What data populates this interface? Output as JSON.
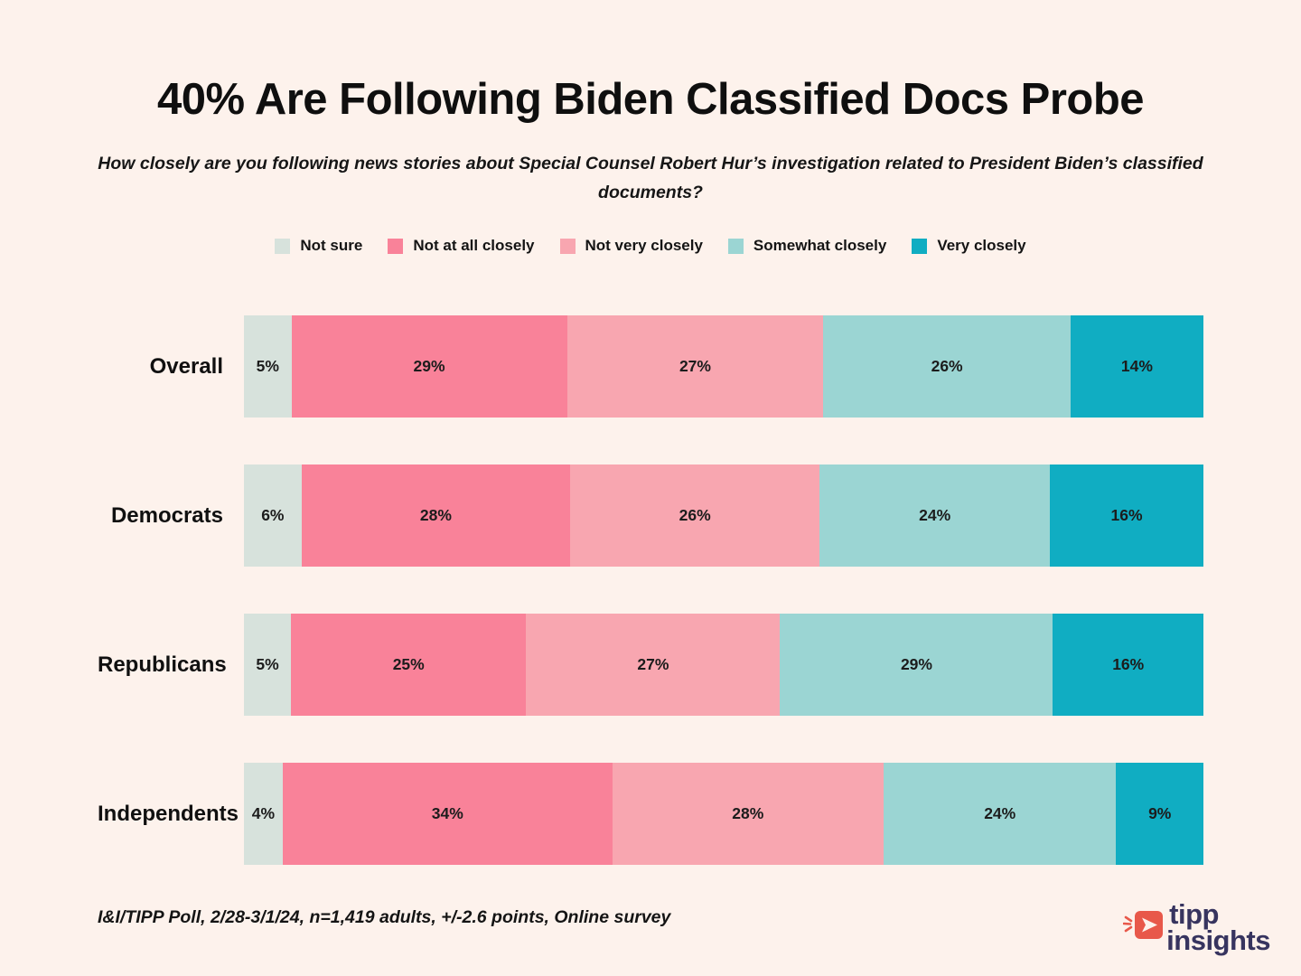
{
  "title": "40% Are Following Biden Classified Docs Probe",
  "subtitle": "How closely are you following news stories about Special Counsel Robert Hur’s investigation related to President Biden’s classified documents?",
  "source_note": "I&I/TIPP Poll, 2/28-3/1/24, n=1,419 adults, +/-2.6 points, Online survey",
  "logo": {
    "word1": "tipp",
    "word2": "insights",
    "icon": "megaphone-arrow-icon",
    "icon_color": "#e8584a",
    "text_color": "#37345f"
  },
  "colors": {
    "background": "#fdf2ec",
    "label_text": "#1c1c1c"
  },
  "chart_data": {
    "type": "bar",
    "stacked": true,
    "orientation": "horizontal",
    "normalized_rows": true,
    "legend_position": "top",
    "value_suffix": "%",
    "categories": [
      "Overall",
      "Democrats",
      "Republicans",
      "Independents"
    ],
    "series": [
      {
        "name": "Not sure",
        "color": "#d7e2dc",
        "values": [
          5,
          6,
          5,
          4
        ]
      },
      {
        "name": "Not at all closely",
        "color": "#f98299",
        "values": [
          29,
          28,
          25,
          34
        ]
      },
      {
        "name": "Not very closely",
        "color": "#f8a6b0",
        "values": [
          27,
          26,
          27,
          28
        ]
      },
      {
        "name": "Somewhat closely",
        "color": "#9bd5d3",
        "values": [
          26,
          24,
          29,
          24
        ]
      },
      {
        "name": "Very closely",
        "color": "#10adc2",
        "values": [
          14,
          16,
          16,
          9
        ]
      }
    ]
  }
}
